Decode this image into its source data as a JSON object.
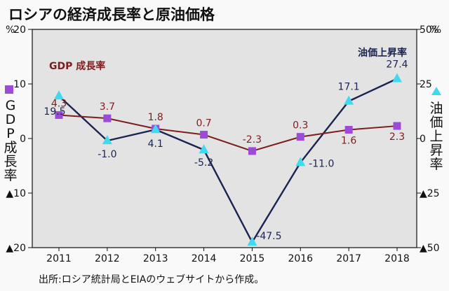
{
  "title": "ロシアの経済成長率と原油価格",
  "source": "出所:ロシア統計局とEIAのウェブサイトから作成。",
  "colors": {
    "gdp": "#7b1e1e",
    "gdp_marker": "#9b4bd6",
    "oil": "#1b2350",
    "oil_marker": "#41d9ee",
    "plot_bg": "#e3e3e3"
  },
  "chart_data": {
    "type": "line",
    "categories": [
      "2011",
      "2012",
      "2013",
      "2014",
      "2015",
      "2016",
      "2017",
      "2018"
    ],
    "left_axis": {
      "unit": "%",
      "ticks": [
        "20",
        "10",
        "0",
        "▲10",
        "▲20"
      ],
      "title": "GDP成長率",
      "range": [
        -20,
        20
      ]
    },
    "right_axis": {
      "unit": "%",
      "ticks": [
        "50%",
        "25",
        "0",
        "▲25",
        "▲50"
      ],
      "title": "油価上昇率",
      "range": [
        -50,
        50
      ]
    },
    "series": [
      {
        "name": "GDP 成長率",
        "axis": "left",
        "values": [
          4.3,
          3.7,
          1.8,
          0.7,
          -2.3,
          0.3,
          1.6,
          2.3
        ],
        "labels": [
          "4.3",
          "3.7",
          "1.8",
          "0.7",
          "-2.3",
          "0.3",
          "1.6",
          "2.3"
        ]
      },
      {
        "name": "油価上昇率",
        "axis": "right",
        "values": [
          19.5,
          -1.0,
          4.1,
          -5.2,
          -47.5,
          -11.0,
          17.1,
          27.4
        ],
        "labels": [
          "19.5",
          "-1.0",
          "4.1",
          "-5.2",
          "-47.5",
          "-11.0",
          "17.1",
          "27.4"
        ]
      }
    ],
    "grid": false
  }
}
